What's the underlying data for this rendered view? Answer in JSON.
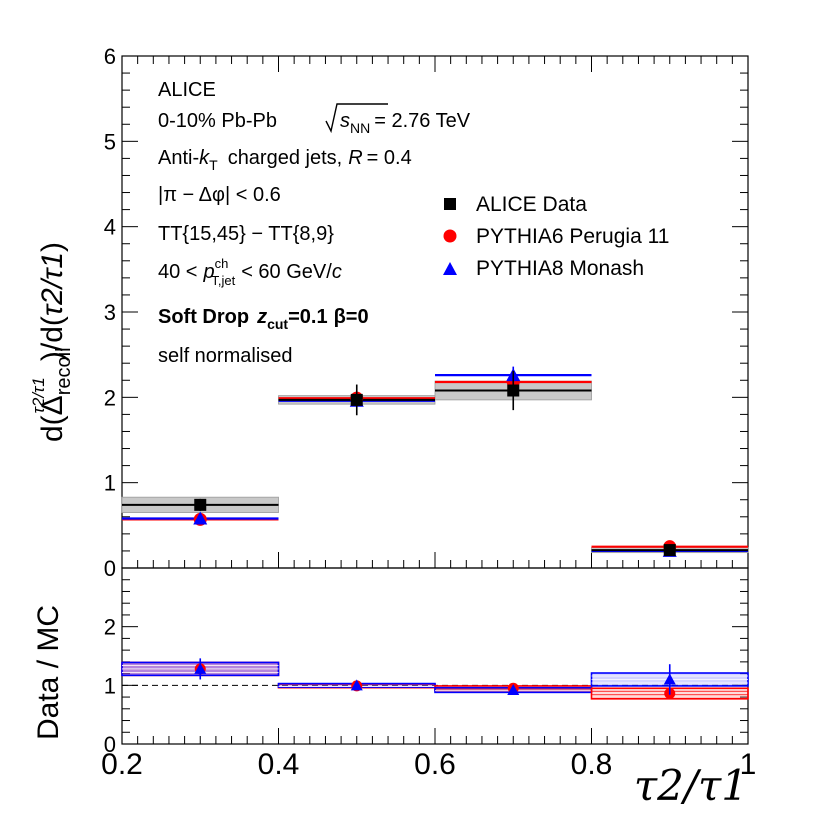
{
  "chart_data": [
    {
      "type": "scatter",
      "panel": "top",
      "xlim": [
        0.2,
        1.0
      ],
      "ylim": [
        0,
        6
      ],
      "yticks": [
        "0",
        "1",
        "2",
        "3",
        "4",
        "5",
        "6"
      ],
      "ylabel": "d(Δrecoil^(τ2/τ1))/d(τ2/τ1)",
      "ylabel_parts": {
        "pre": "d(Δ",
        "sub": "recoil",
        "sup": "τ2/τ1",
        "mid": ")/d(",
        "var": "τ2/τ1",
        "post": ")"
      },
      "bins": [
        [
          0.2,
          0.4
        ],
        [
          0.4,
          0.6
        ],
        [
          0.6,
          0.8
        ],
        [
          0.8,
          1.0
        ]
      ],
      "series": [
        {
          "name": "ALICE Data",
          "color": "#000000",
          "marker": "square",
          "x": [
            0.3,
            0.5,
            0.7,
            0.9
          ],
          "values": [
            0.74,
            1.97,
            2.08,
            0.21
          ],
          "stat_err": [
            0.07,
            0.18,
            0.23,
            0.03
          ],
          "sys_err": [
            0.09,
            0.05,
            0.11,
            0.03
          ]
        },
        {
          "name": "PYTHIA6 Perugia 11",
          "color": "#ff0000",
          "marker": "circle",
          "x": [
            0.3,
            0.5,
            0.7,
            0.9
          ],
          "values": [
            0.57,
            1.99,
            2.18,
            0.25
          ]
        },
        {
          "name": "PYTHIA8 Monash",
          "color": "#0000ff",
          "marker": "triangle",
          "x": [
            0.3,
            0.5,
            0.7,
            0.9
          ],
          "values": [
            0.58,
            1.96,
            2.26,
            0.2
          ],
          "stat_err": [
            0.03,
            0.06,
            0.1,
            0.03
          ]
        }
      ],
      "legend": [
        "ALICE Data",
        "PYTHIA6 Perugia 11",
        "PYTHIA8 Monash"
      ],
      "annotations": {
        "experiment": "ALICE",
        "system": "0-10% Pb-Pb",
        "energy_var": "s",
        "energy_sub": "NN",
        "energy_val": "= 2.76 TeV",
        "jets_pre": "Anti-",
        "jets_k": "k",
        "jets_ksub": "T",
        "jets_mid": "charged jets,",
        "jets_R": "R",
        "jets_Rval": "= 0.4",
        "phi_cut": "|π − Δφ| < 0.6",
        "tt_selection": "TT{15,45} − TT{8,9}",
        "pt_pre": "40 <",
        "pt_var": "p",
        "pt_sup": "ch",
        "pt_sub": "T,jet",
        "pt_post": "< 60 GeV/",
        "pt_c": "c",
        "grooming_name": "Soft Drop",
        "grooming_z": "z",
        "grooming_zsub": "cut",
        "grooming_zval": "=0.1",
        "grooming_beta": "β=0",
        "normalisation": "self normalised"
      }
    },
    {
      "type": "bar",
      "panel": "bottom",
      "xlim": [
        0.2,
        1.0
      ],
      "ylim": [
        0,
        3
      ],
      "yticks": [
        "0",
        "1",
        "2"
      ],
      "ylabel": "Data / MC",
      "xlabel": "τ2/τ1",
      "xticks": [
        "0.2",
        "0.4",
        "0.6",
        "0.8",
        "1"
      ],
      "reference_line": 1.0,
      "bins": [
        [
          0.2,
          0.4
        ],
        [
          0.4,
          0.6
        ],
        [
          0.6,
          0.8
        ],
        [
          0.8,
          1.0
        ]
      ],
      "series": [
        {
          "name": "Data / PYTHIA6 Perugia 11",
          "color": "#ff0000",
          "values": [
            1.28,
            0.99,
            0.95,
            0.86
          ],
          "band": [
            0.11,
            0.03,
            0.04,
            0.09
          ]
        },
        {
          "name": "Data / PYTHIA8 Monash",
          "color": "#0000ff",
          "values": [
            1.28,
            1.0,
            0.92,
            1.1
          ],
          "band": [
            0.11,
            0.03,
            0.04,
            0.11
          ],
          "stat_err": [
            0.18,
            0.05,
            0.06,
            0.26
          ]
        }
      ]
    }
  ]
}
